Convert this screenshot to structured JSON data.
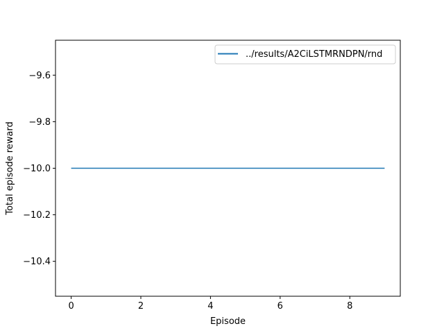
{
  "chart_data": {
    "type": "line",
    "title": "",
    "xlabel": "Episode",
    "ylabel": "Total episode reward",
    "xlim": [
      -0.45,
      9.45
    ],
    "ylim": [
      -10.55,
      -9.45
    ],
    "xticks": [
      0,
      2,
      4,
      6,
      8
    ],
    "xtick_labels": [
      "0",
      "2",
      "4",
      "6",
      "8"
    ],
    "yticks": [
      -9.6,
      -9.8,
      -10.0,
      -10.2,
      -10.4
    ],
    "ytick_labels": [
      "−9.6",
      "−9.8",
      "−10.0",
      "−10.2",
      "−10.4"
    ],
    "grid": false,
    "legend_position": "top-right",
    "series": [
      {
        "name": "../results/A2CiLSTMRNDPN/rnd",
        "color": "#1f77b4",
        "x": [
          0,
          1,
          2,
          3,
          4,
          5,
          6,
          7,
          8,
          9
        ],
        "y": [
          -10,
          -10,
          -10,
          -10,
          -10,
          -10,
          -10,
          -10,
          -10,
          -10
        ]
      }
    ]
  }
}
